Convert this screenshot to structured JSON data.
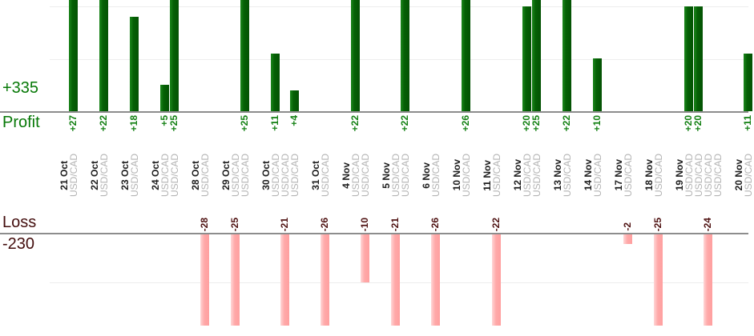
{
  "profit_axis": {
    "total_label": "+335",
    "axis_label": "Profit"
  },
  "loss_axis": {
    "axis_label": "Loss",
    "total_label": "-230"
  },
  "colors": {
    "profit_bar": "#066306",
    "profit_text": "#067806",
    "profit_value_text": "#138013",
    "loss_bar": "#ffa9a9",
    "loss_text": "#420c0c",
    "loss_value_text": "#4f1212",
    "date_text": "#1c1c1c",
    "pair_text": "#b3b3b3",
    "axis_line": "#8d8d8d",
    "gridline": "#ededed"
  },
  "chart_data": {
    "type": "bar",
    "title": "",
    "xlabel": "",
    "ylabel": "",
    "profit_total": 335,
    "loss_total": -230,
    "pair": "USD/CAD",
    "profit_gridline_values": [
      10,
      20
    ],
    "loss_gridline_values": [
      -10
    ],
    "groups": [
      {
        "date": "21 Oct",
        "trades": [
          {
            "pair": "USD/CAD",
            "value": 27
          }
        ]
      },
      {
        "date": "22 Oct",
        "trades": [
          {
            "pair": "USD/CAD",
            "value": 22
          }
        ]
      },
      {
        "date": "23 Oct",
        "trades": [
          {
            "pair": "USD/CAD",
            "value": 18
          }
        ]
      },
      {
        "date": "24 Oct",
        "trades": [
          {
            "pair": "USD/CAD",
            "value": 5
          },
          {
            "pair": "USD/CAD",
            "value": 25
          }
        ]
      },
      {
        "date": "28 Oct",
        "trades": [
          {
            "pair": "USD/CAD",
            "value": -28
          }
        ]
      },
      {
        "date": "29 Oct",
        "trades": [
          {
            "pair": "USD/CAD",
            "value": -25
          },
          {
            "pair": "USD/CAD",
            "value": 25
          }
        ]
      },
      {
        "date": "30 Oct",
        "trades": [
          {
            "pair": "USD/CAD",
            "value": 11
          },
          {
            "pair": "USD/CAD",
            "value": -21
          },
          {
            "pair": "USD/CAD",
            "value": 4
          }
        ]
      },
      {
        "date": "31 Oct",
        "trades": [
          {
            "pair": "USD/CAD",
            "value": -26
          }
        ]
      },
      {
        "date": "4 Nov",
        "trades": [
          {
            "pair": "USD/CAD",
            "value": 22
          },
          {
            "pair": "USD/CAD",
            "value": -10
          }
        ]
      },
      {
        "date": "5 Nov",
        "trades": [
          {
            "pair": "USD/CAD",
            "value": -21
          },
          {
            "pair": "USD/CAD",
            "value": 22
          }
        ]
      },
      {
        "date": "6 Nov",
        "trades": [
          {
            "pair": "USD/CAD",
            "value": -26
          }
        ]
      },
      {
        "date": "10 Nov",
        "trades": [
          {
            "pair": "USD/CAD",
            "value": 26
          }
        ]
      },
      {
        "date": "11 Nov",
        "trades": [
          {
            "pair": "USD/CAD",
            "value": -22
          }
        ]
      },
      {
        "date": "12 Nov",
        "trades": [
          {
            "pair": "USD/CAD",
            "value": 20
          },
          {
            "pair": "USD/CAD",
            "value": 25
          }
        ]
      },
      {
        "date": "13 Nov",
        "trades": [
          {
            "pair": "USD/CAD",
            "value": 22
          }
        ]
      },
      {
        "date": "14 Nov",
        "trades": [
          {
            "pair": "USD/CAD",
            "value": 10
          }
        ]
      },
      {
        "date": "17 Nov",
        "trades": [
          {
            "pair": "USD/CAD",
            "value": -2
          }
        ]
      },
      {
        "date": "18 Nov",
        "trades": [
          {
            "pair": "USD/CAD",
            "value": -25
          }
        ]
      },
      {
        "date": "19 Nov",
        "trades": [
          {
            "pair": "USD/CAD",
            "value": 20
          },
          {
            "pair": "USD/CAD",
            "value": 20
          },
          {
            "pair": "USD/CAD",
            "value": -24
          },
          {
            "pair": "USD/CAD",
            "value": 0
          }
        ]
      },
      {
        "date": "20 Nov",
        "trades": [
          {
            "pair": "USD/CAD",
            "value": 11
          }
        ]
      }
    ]
  }
}
